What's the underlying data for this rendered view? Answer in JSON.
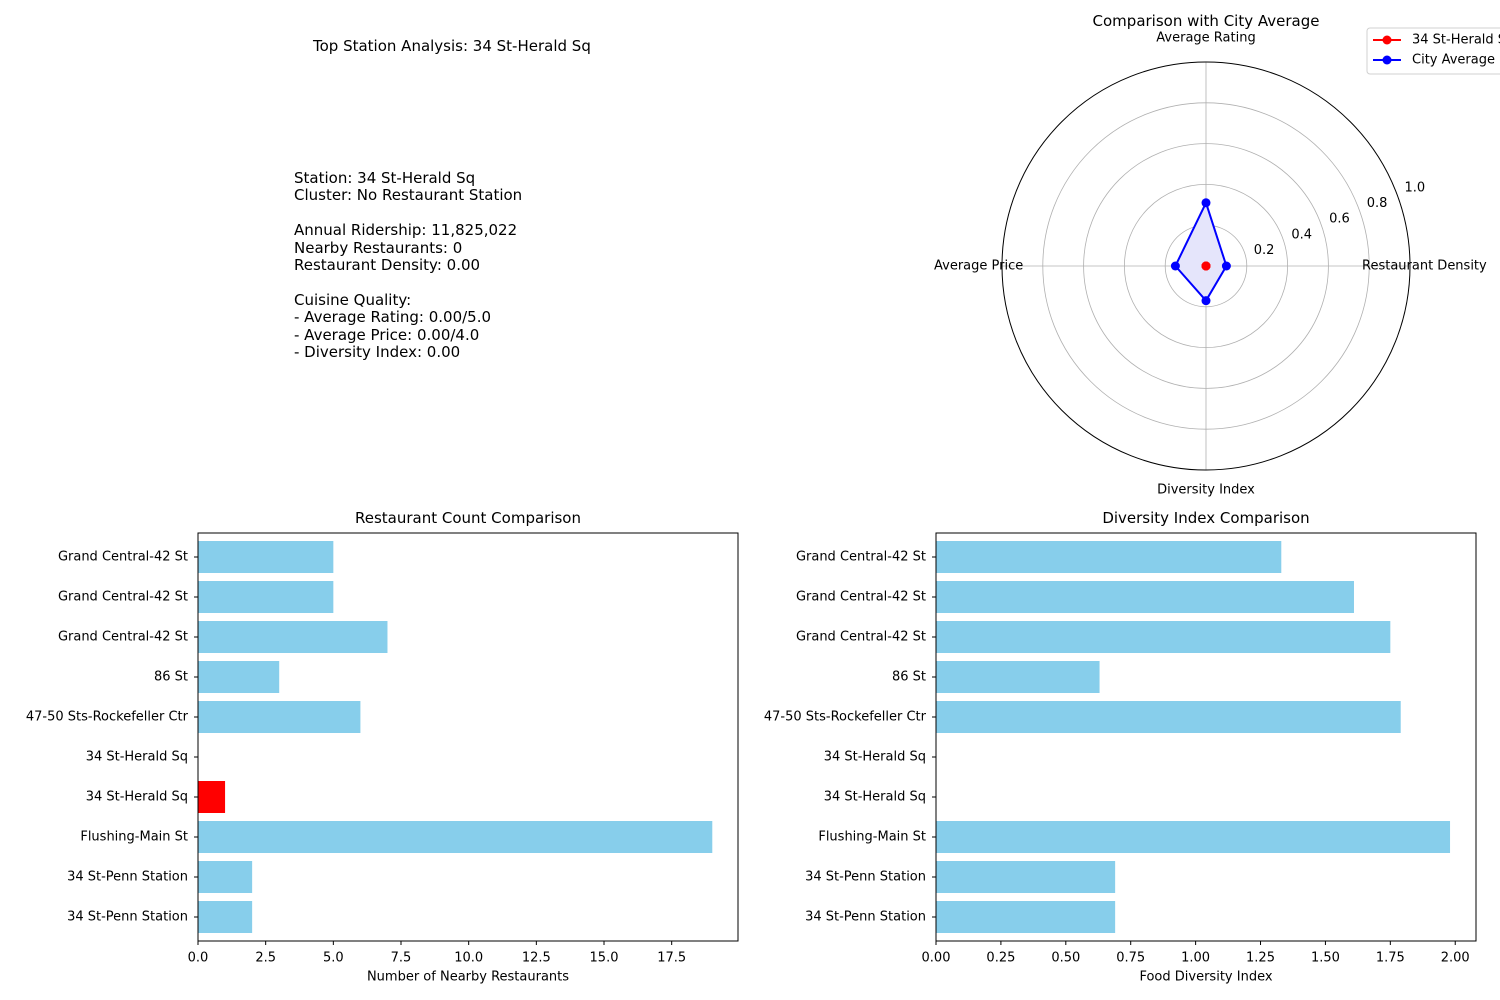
{
  "info": {
    "title": "Top Station Analysis: 34 St-Herald Sq",
    "lines": [
      [
        "Station: 34 St-Herald Sq",
        "Cluster: No Restaurant Station"
      ],
      [
        "Annual Ridership: 11,825,022",
        "Nearby Restaurants: 0",
        "Restaurant Density: 0.00"
      ],
      [
        "Cuisine Quality:",
        "- Average Rating: 0.00/5.0",
        "- Average Price: 0.00/4.0",
        "- Diversity Index: 0.00"
      ]
    ]
  },
  "colors": {
    "bar": "#87ceeb",
    "highlight": "#ff0000",
    "station_line": "#ff0000",
    "city_line": "#0000ff",
    "city_fill": "#e5e5fb"
  },
  "chart_data": [
    {
      "type": "radar",
      "title": "Comparison with City Average",
      "axes": [
        "Average Rating",
        "Restaurant Density",
        "Diversity Index",
        "Average Price"
      ],
      "rlim": [
        0,
        1.0
      ],
      "rticks": [
        "0.2",
        "0.4",
        "0.6",
        "0.8",
        "1.0"
      ],
      "rtick_values": [
        0.2,
        0.4,
        0.6,
        0.8,
        1.0
      ],
      "series": [
        {
          "name": "34 St-Herald Sq",
          "values": [
            0.0,
            0.0,
            0.0,
            0.0
          ],
          "color": "#ff0000"
        },
        {
          "name": "City Average",
          "values": [
            0.31,
            0.1,
            0.17,
            0.15
          ],
          "color": "#0000ff"
        }
      ],
      "legend": "top-right"
    },
    {
      "type": "bar",
      "orientation": "horizontal",
      "title": "Restaurant Count Comparison",
      "xlabel": "Number of Nearby Restaurants",
      "categories": [
        "34 St-Penn Station",
        "34 St-Penn Station",
        "Flushing-Main St",
        "34 St-Herald Sq",
        "34 St-Herald Sq",
        "47-50 Sts-Rockefeller Ctr",
        "86 St",
        "Grand Central-42 St",
        "Grand Central-42 St",
        "Grand Central-42 St"
      ],
      "values": [
        2,
        2,
        19,
        1,
        0,
        6,
        3,
        7,
        5,
        5
      ],
      "highlight_index": 3,
      "xlim": [
        0,
        19.95
      ],
      "xticks": [
        0,
        2.5,
        5,
        7.5,
        10,
        12.5,
        15,
        17.5
      ],
      "xtick_labels": [
        "0.0",
        "2.5",
        "5.0",
        "7.5",
        "10.0",
        "12.5",
        "15.0",
        "17.5"
      ]
    },
    {
      "type": "bar",
      "orientation": "horizontal",
      "title": "Diversity Index Comparison",
      "xlabel": "Food Diversity Index",
      "categories": [
        "34 St-Penn Station",
        "34 St-Penn Station",
        "Flushing-Main St",
        "34 St-Herald Sq",
        "34 St-Herald Sq",
        "47-50 Sts-Rockefeller Ctr",
        "86 St",
        "Grand Central-42 St",
        "Grand Central-42 St",
        "Grand Central-42 St"
      ],
      "values": [
        0.69,
        0.69,
        1.98,
        0,
        0,
        1.79,
        0.63,
        1.75,
        1.61,
        1.33
      ],
      "highlight_index": -1,
      "xlim": [
        0,
        2.08
      ],
      "xticks": [
        0,
        0.25,
        0.5,
        0.75,
        1.0,
        1.25,
        1.5,
        1.75,
        2.0
      ],
      "xtick_labels": [
        "0.00",
        "0.25",
        "0.50",
        "0.75",
        "1.00",
        "1.25",
        "1.50",
        "1.75",
        "2.00"
      ]
    }
  ]
}
